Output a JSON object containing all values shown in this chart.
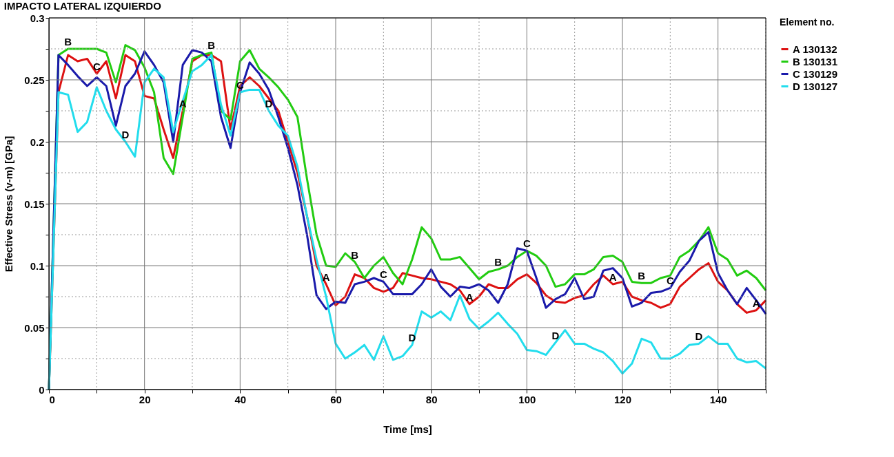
{
  "chart_data": {
    "type": "line",
    "title": "IMPACTO LATERAL IZQUIERDO",
    "xlabel": "Time [ms]",
    "ylabel": "Effective Stress (v-m) [GPa]",
    "legend_title": "Element no.",
    "legend": "right",
    "grid": true,
    "marker": "none",
    "line_style": "solid",
    "x": [
      0,
      2,
      4,
      6,
      8,
      10,
      12,
      14,
      16,
      18,
      20,
      22,
      24,
      26,
      28,
      30,
      32,
      34,
      36,
      38,
      40,
      42,
      44,
      46,
      48,
      50,
      52,
      54,
      56,
      58,
      60,
      62,
      64,
      66,
      68,
      70,
      72,
      74,
      76,
      78,
      80,
      82,
      84,
      86,
      88,
      90,
      92,
      94,
      96,
      98,
      100,
      102,
      104,
      106,
      108,
      110,
      112,
      114,
      116,
      118,
      120,
      122,
      124,
      126,
      128,
      130,
      132,
      134,
      136,
      138,
      140,
      142,
      144,
      146,
      148,
      150
    ],
    "xlim": [
      0,
      150
    ],
    "ylim": [
      0,
      0.3
    ],
    "xticks": [
      0,
      {
        "value": 10,
        "label": null
      },
      20,
      {
        "value": 30,
        "label": null
      },
      40,
      {
        "value": 50,
        "label": null
      },
      60,
      {
        "value": 70,
        "label": null
      },
      80,
      {
        "value": 90,
        "label": null
      },
      100,
      {
        "value": 110,
        "label": null
      },
      120,
      {
        "value": 130,
        "label": null
      },
      140,
      {
        "value": 150,
        "label": null
      }
    ],
    "yticks": [
      0,
      {
        "value": 0.025,
        "label": null
      },
      0.05,
      {
        "value": 0.075,
        "label": null
      },
      0.1,
      {
        "value": 0.125,
        "label": null
      },
      0.15,
      {
        "value": 0.175,
        "label": null
      },
      0.2,
      {
        "value": 0.225,
        "label": null
      },
      0.25,
      {
        "value": 0.275,
        "label": null
      },
      0.3
    ],
    "series": [
      {
        "name": "A 130132",
        "color": "#dd1111",
        "values": [
          0,
          0.24,
          0.27,
          0.265,
          0.267,
          0.255,
          0.265,
          0.235,
          0.27,
          0.265,
          0.237,
          0.235,
          0.21,
          0.187,
          0.225,
          0.265,
          0.27,
          0.27,
          0.265,
          0.21,
          0.245,
          0.252,
          0.245,
          0.235,
          0.225,
          0.2,
          0.175,
          0.14,
          0.1,
          0.085,
          0.068,
          0.075,
          0.093,
          0.09,
          0.082,
          0.079,
          0.082,
          0.094,
          0.092,
          0.09,
          0.089,
          0.087,
          0.085,
          0.08,
          0.069,
          0.075,
          0.085,
          0.082,
          0.082,
          0.089,
          0.093,
          0.086,
          0.076,
          0.071,
          0.07,
          0.074,
          0.076,
          0.085,
          0.092,
          0.085,
          0.087,
          0.075,
          0.072,
          0.07,
          0.066,
          0.069,
          0.083,
          0.09,
          0.097,
          0.102,
          0.087,
          0.08,
          0.069,
          0.062,
          0.064,
          0.072
        ]
      },
      {
        "name": "B 130131",
        "color": "#22cc11",
        "values": [
          0,
          0.27,
          0.275,
          0.275,
          0.275,
          0.275,
          0.272,
          0.248,
          0.278,
          0.274,
          0.26,
          0.24,
          0.187,
          0.174,
          0.22,
          0.267,
          0.27,
          0.272,
          0.225,
          0.218,
          0.265,
          0.274,
          0.259,
          0.252,
          0.244,
          0.234,
          0.22,
          0.17,
          0.125,
          0.1,
          0.099,
          0.11,
          0.103,
          0.09,
          0.1,
          0.107,
          0.094,
          0.085,
          0.105,
          0.131,
          0.122,
          0.105,
          0.105,
          0.107,
          0.098,
          0.089,
          0.095,
          0.097,
          0.1,
          0.107,
          0.112,
          0.108,
          0.1,
          0.083,
          0.085,
          0.093,
          0.093,
          0.097,
          0.107,
          0.108,
          0.103,
          0.087,
          0.086,
          0.086,
          0.09,
          0.092,
          0.107,
          0.112,
          0.12,
          0.131,
          0.11,
          0.105,
          0.092,
          0.096,
          0.09,
          0.08
        ]
      },
      {
        "name": "C 130129",
        "color": "#1a1aaa",
        "values": [
          0,
          0.27,
          0.262,
          0.253,
          0.245,
          0.252,
          0.245,
          0.213,
          0.245,
          0.255,
          0.273,
          0.262,
          0.248,
          0.2,
          0.262,
          0.274,
          0.272,
          0.265,
          0.22,
          0.195,
          0.24,
          0.264,
          0.255,
          0.242,
          0.22,
          0.195,
          0.165,
          0.125,
          0.076,
          0.065,
          0.071,
          0.07,
          0.085,
          0.087,
          0.09,
          0.087,
          0.077,
          0.077,
          0.077,
          0.085,
          0.097,
          0.083,
          0.075,
          0.083,
          0.082,
          0.085,
          0.08,
          0.07,
          0.085,
          0.114,
          0.112,
          0.09,
          0.066,
          0.073,
          0.077,
          0.09,
          0.073,
          0.075,
          0.096,
          0.098,
          0.09,
          0.067,
          0.07,
          0.078,
          0.079,
          0.082,
          0.095,
          0.104,
          0.12,
          0.127,
          0.094,
          0.08,
          0.069,
          0.082,
          0.072,
          0.061
        ]
      },
      {
        "name": "D 130127",
        "color": "#22dded",
        "values": [
          0,
          0.24,
          0.238,
          0.208,
          0.216,
          0.244,
          0.225,
          0.21,
          0.2,
          0.188,
          0.248,
          0.259,
          0.252,
          0.208,
          0.233,
          0.257,
          0.262,
          0.27,
          0.23,
          0.205,
          0.24,
          0.242,
          0.242,
          0.225,
          0.213,
          0.205,
          0.18,
          0.14,
          0.105,
          0.075,
          0.037,
          0.025,
          0.03,
          0.036,
          0.024,
          0.043,
          0.024,
          0.027,
          0.036,
          0.063,
          0.058,
          0.063,
          0.056,
          0.076,
          0.057,
          0.049,
          0.055,
          0.062,
          0.053,
          0.045,
          0.032,
          0.031,
          0.028,
          0.038,
          0.048,
          0.037,
          0.037,
          0.033,
          0.03,
          0.023,
          0.013,
          0.021,
          0.041,
          0.038,
          0.025,
          0.025,
          0.029,
          0.036,
          0.037,
          0.043,
          0.037,
          0.037,
          0.025,
          0.022,
          0.023,
          0.017
        ]
      }
    ],
    "annotations": [
      {
        "text": "A",
        "x": 28,
        "y": 0.225
      },
      {
        "text": "A",
        "x": 58,
        "y": 0.085
      },
      {
        "text": "A",
        "x": 88,
        "y": 0.069
      },
      {
        "text": "A",
        "x": 118,
        "y": 0.085
      },
      {
        "text": "A",
        "x": 148,
        "y": 0.064
      },
      {
        "text": "B",
        "x": 4,
        "y": 0.275
      },
      {
        "text": "B",
        "x": 34,
        "y": 0.272
      },
      {
        "text": "B",
        "x": 64,
        "y": 0.103
      },
      {
        "text": "B",
        "x": 94,
        "y": 0.097
      },
      {
        "text": "B",
        "x": 124,
        "y": 0.086
      },
      {
        "text": "C",
        "x": 10,
        "y": 0.255
      },
      {
        "text": "C",
        "x": 40,
        "y": 0.24
      },
      {
        "text": "C",
        "x": 70,
        "y": 0.087
      },
      {
        "text": "C",
        "x": 100,
        "y": 0.112
      },
      {
        "text": "C",
        "x": 130,
        "y": 0.082
      },
      {
        "text": "D",
        "x": 16,
        "y": 0.2
      },
      {
        "text": "D",
        "x": 46,
        "y": 0.225
      },
      {
        "text": "D",
        "x": 76,
        "y": 0.036
      },
      {
        "text": "D",
        "x": 106,
        "y": 0.038
      },
      {
        "text": "D",
        "x": 136,
        "y": 0.037
      }
    ]
  }
}
